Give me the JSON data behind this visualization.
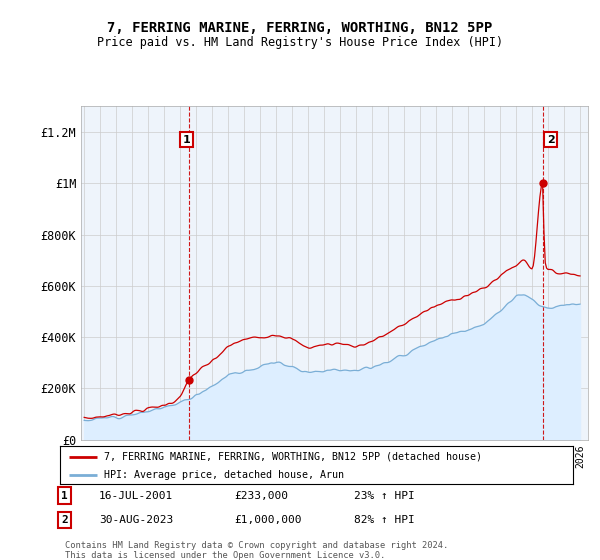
{
  "title": "7, FERRING MARINE, FERRING, WORTHING, BN12 5PP",
  "subtitle": "Price paid vs. HM Land Registry's House Price Index (HPI)",
  "legend_line1": "7, FERRING MARINE, FERRING, WORTHING, BN12 5PP (detached house)",
  "legend_line2": "HPI: Average price, detached house, Arun",
  "annotation1_date": "16-JUL-2001",
  "annotation1_price": "£233,000",
  "annotation1_hpi": "23% ↑ HPI",
  "annotation2_date": "30-AUG-2023",
  "annotation2_price": "£1,000,000",
  "annotation2_hpi": "82% ↑ HPI",
  "footer": "Contains HM Land Registry data © Crown copyright and database right 2024.\nThis data is licensed under the Open Government Licence v3.0.",
  "price_line_color": "#cc0000",
  "hpi_line_color": "#7aaed6",
  "ylim": [
    0,
    1300000
  ],
  "yticks": [
    0,
    200000,
    400000,
    600000,
    800000,
    1000000,
    1200000
  ],
  "ytick_labels": [
    "£0",
    "£200K",
    "£400K",
    "£600K",
    "£800K",
    "£1M",
    "£1.2M"
  ],
  "sale1_year": 2001.54,
  "sale1_price": 233000,
  "sale2_year": 2023.66,
  "sale2_price": 1000000,
  "bg_color": "#ffffff",
  "grid_color": "#cccccc",
  "hpi_fill_color": "#ddeeff",
  "chart_bg_color": "#eef4fb"
}
